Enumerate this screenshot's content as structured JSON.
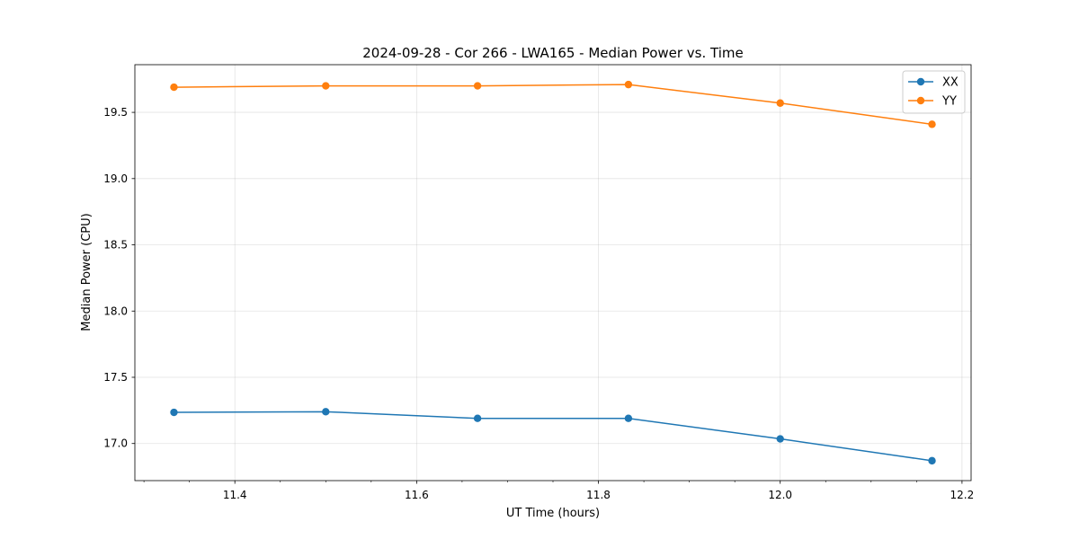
{
  "chart_data": {
    "type": "line",
    "title": "2024-09-28 - Cor 266 - LWA165 - Median Power vs. Time",
    "xlabel": "UT Time (hours)",
    "ylabel": "Median Power (CPU)",
    "xlim": [
      11.29,
      12.21
    ],
    "ylim": [
      16.72,
      19.86
    ],
    "xticks": [
      11.4,
      11.6,
      11.8,
      12.0,
      12.2
    ],
    "xtick_labels": [
      "11.4",
      "11.6",
      "11.8",
      "12.0",
      "12.2"
    ],
    "xminor": [
      11.3,
      11.35,
      11.45,
      11.5,
      11.55,
      11.65,
      11.7,
      11.75,
      11.85,
      11.9,
      11.95,
      12.05,
      12.1,
      12.15
    ],
    "yticks": [
      17.0,
      17.5,
      18.0,
      18.5,
      19.0,
      19.5
    ],
    "ytick_labels": [
      "17.0",
      "17.5",
      "18.0",
      "18.5",
      "19.0",
      "19.5"
    ],
    "grid": true,
    "legend_position": "top-right",
    "x": [
      11.333,
      11.5,
      11.667,
      11.833,
      12.0,
      12.167
    ],
    "series": [
      {
        "name": "XX",
        "color": "#1f77b4",
        "values": [
          17.235,
          17.24,
          17.19,
          17.19,
          17.035,
          16.87
        ]
      },
      {
        "name": "YY",
        "color": "#ff7f0e",
        "values": [
          19.69,
          19.7,
          19.7,
          19.71,
          19.57,
          19.41
        ]
      }
    ]
  }
}
